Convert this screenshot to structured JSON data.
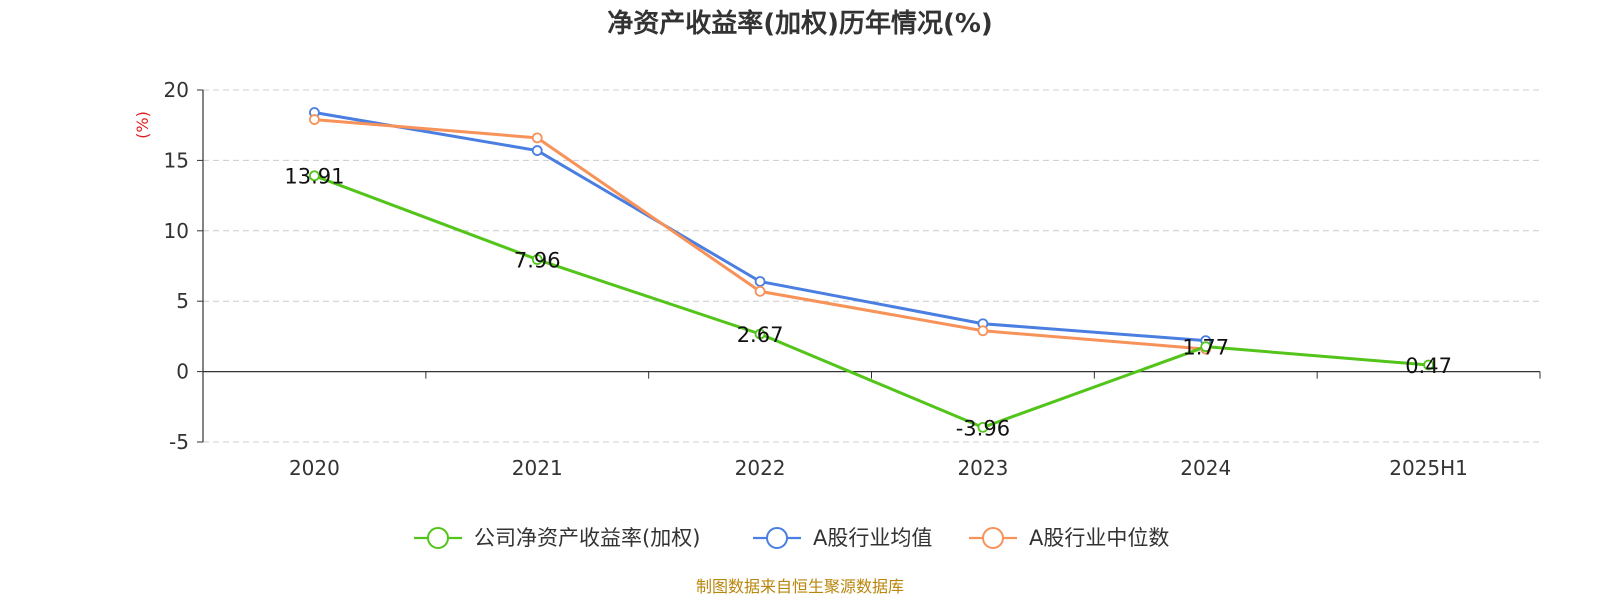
{
  "chart_data": {
    "type": "line",
    "title": "净资产收益率(加权)历年情况(%)",
    "ylabel": "(%)",
    "categories": [
      "2020",
      "2021",
      "2022",
      "2023",
      "2024",
      "2025H1"
    ],
    "y_ticks": [
      "20",
      "15",
      "10",
      "5",
      "0",
      "-5"
    ],
    "ylim": [
      -5,
      20
    ],
    "grid": true,
    "legend_position": "bottom-center",
    "series": [
      {
        "name": "公司净资产收益率(加权)",
        "color": "#52c41a",
        "values": [
          13.91,
          7.96,
          2.67,
          -3.96,
          1.77,
          0.47
        ],
        "labels": [
          "13.91",
          "7.96",
          "2.67",
          "-3.96",
          "1.77",
          "0.47"
        ]
      },
      {
        "name": "A股行业均值",
        "color": "#4a7ee0",
        "values": [
          18.4,
          15.7,
          6.4,
          3.4,
          2.2,
          null
        ]
      },
      {
        "name": "A股行业中位数",
        "color": "#f79259",
        "values": [
          17.9,
          16.6,
          5.7,
          2.9,
          1.6,
          null
        ]
      }
    ]
  },
  "source": {
    "text": "制图数据来自恒生聚源数据库",
    "color": "#b8860b"
  },
  "ylabel_color": "#e02020"
}
